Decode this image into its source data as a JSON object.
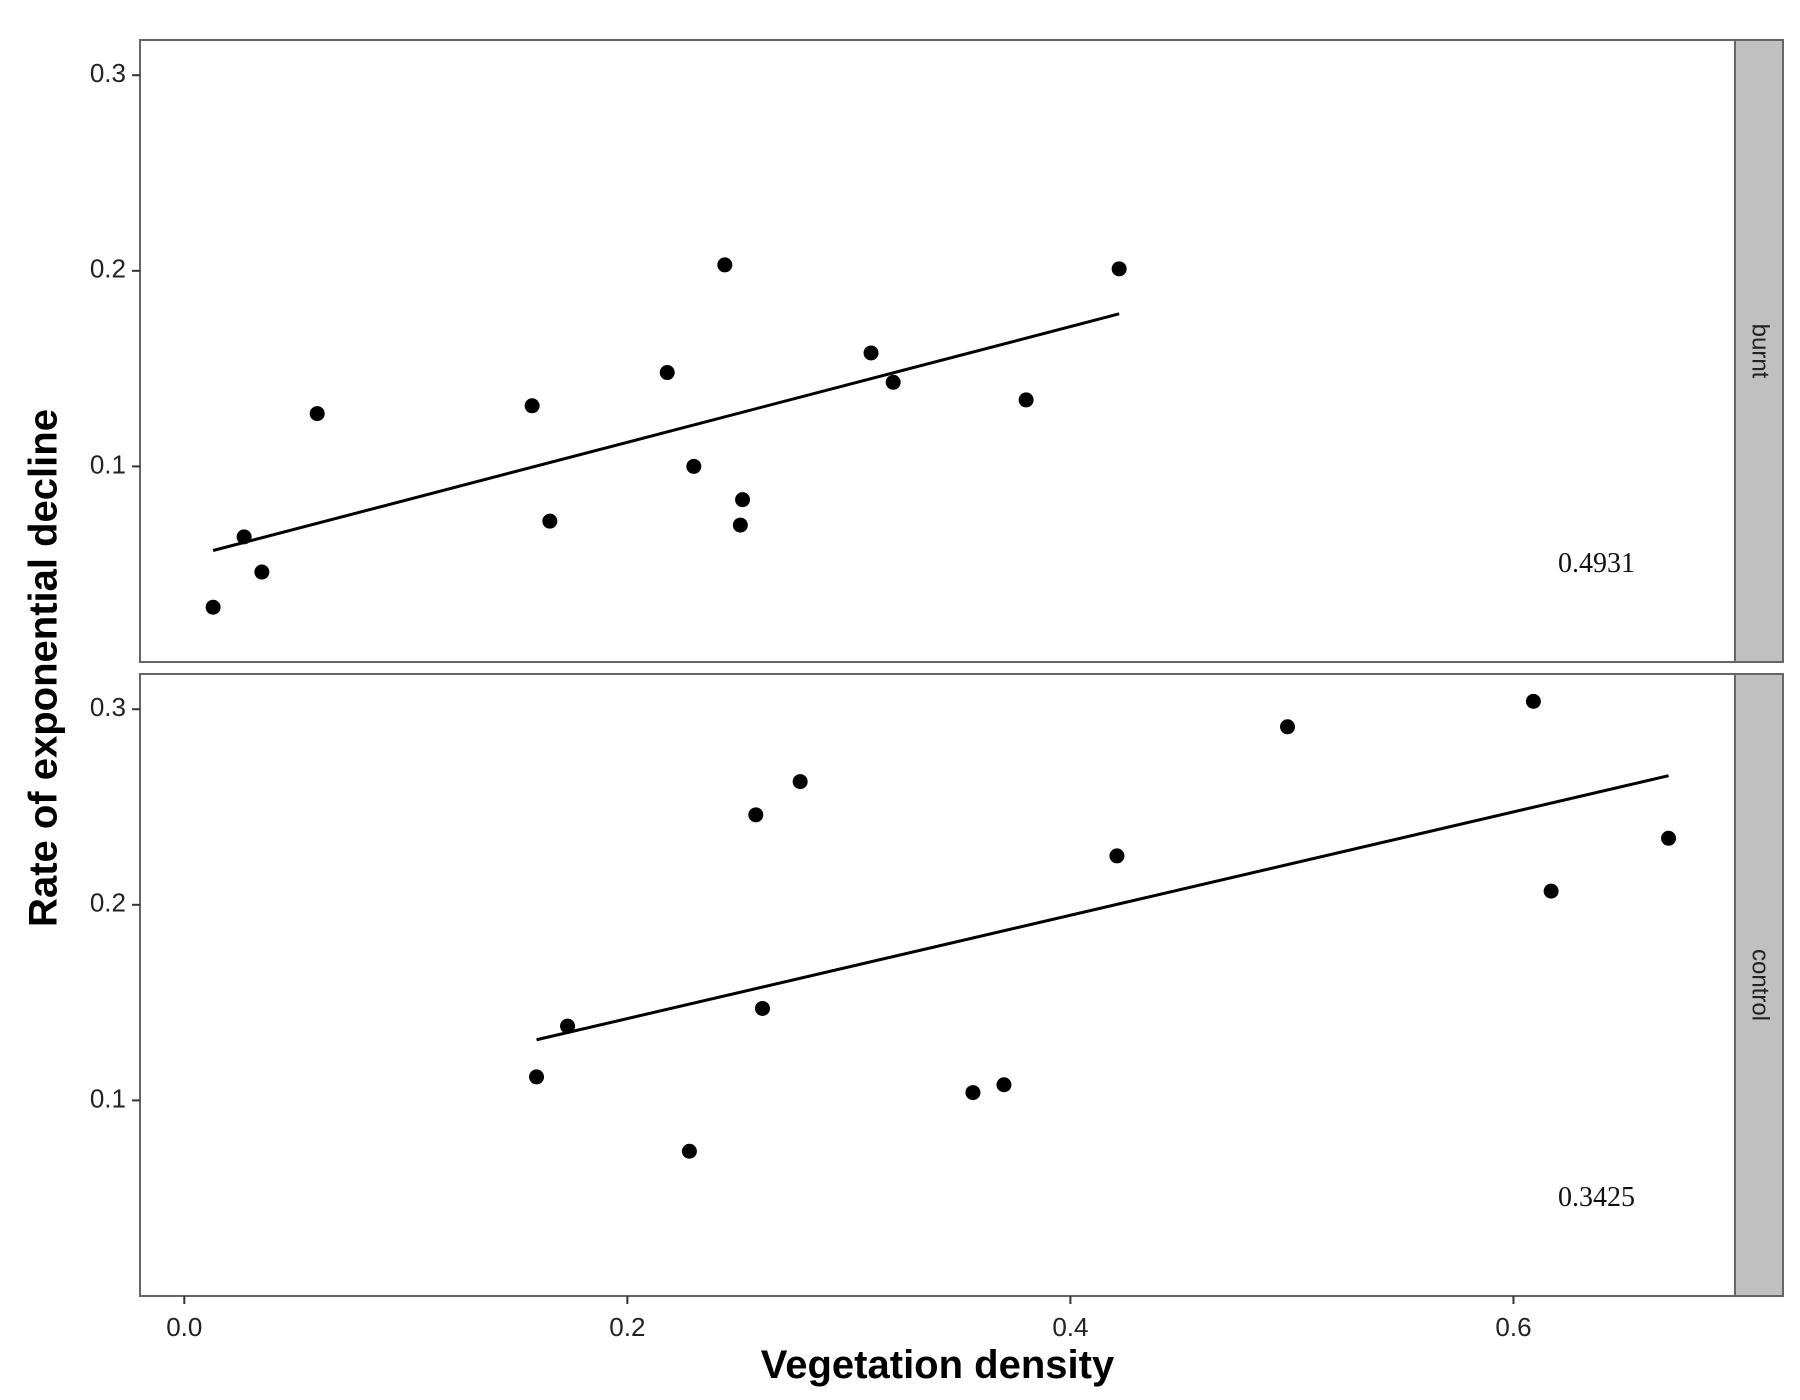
{
  "chart_data": {
    "type": "scatter",
    "xlabel": "Vegetation density",
    "ylabel": "Rate of exponential decline",
    "xlim": [
      -0.02,
      0.7
    ],
    "ylim": [
      0.0,
      0.318
    ],
    "x_ticks": [
      0.0,
      0.2,
      0.4,
      0.6
    ],
    "x_tick_labels": [
      "0.0",
      "0.2",
      "0.4",
      "0.6"
    ],
    "y_ticks": [
      0.1,
      0.2,
      0.3
    ],
    "y_tick_labels": [
      "0.1",
      "0.2",
      "0.3"
    ],
    "grid": false,
    "facets": [
      {
        "strip": "burnt",
        "annotation": "0.4931",
        "points": [
          {
            "x": 0.013,
            "y": 0.028
          },
          {
            "x": 0.027,
            "y": 0.064
          },
          {
            "x": 0.035,
            "y": 0.046
          },
          {
            "x": 0.06,
            "y": 0.127
          },
          {
            "x": 0.157,
            "y": 0.131
          },
          {
            "x": 0.165,
            "y": 0.072
          },
          {
            "x": 0.218,
            "y": 0.148
          },
          {
            "x": 0.23,
            "y": 0.1
          },
          {
            "x": 0.244,
            "y": 0.203
          },
          {
            "x": 0.251,
            "y": 0.07
          },
          {
            "x": 0.252,
            "y": 0.083
          },
          {
            "x": 0.31,
            "y": 0.158
          },
          {
            "x": 0.32,
            "y": 0.143
          },
          {
            "x": 0.38,
            "y": 0.134
          },
          {
            "x": 0.422,
            "y": 0.201
          }
        ],
        "fit_line": [
          {
            "x": 0.013,
            "y": 0.057
          },
          {
            "x": 0.422,
            "y": 0.178
          }
        ]
      },
      {
        "strip": "control",
        "annotation": "0.3425",
        "points": [
          {
            "x": 0.159,
            "y": 0.112
          },
          {
            "x": 0.173,
            "y": 0.138
          },
          {
            "x": 0.228,
            "y": 0.074
          },
          {
            "x": 0.258,
            "y": 0.246
          },
          {
            "x": 0.261,
            "y": 0.147
          },
          {
            "x": 0.278,
            "y": 0.263
          },
          {
            "x": 0.356,
            "y": 0.104
          },
          {
            "x": 0.37,
            "y": 0.108
          },
          {
            "x": 0.421,
            "y": 0.225
          },
          {
            "x": 0.498,
            "y": 0.291
          },
          {
            "x": 0.609,
            "y": 0.304
          },
          {
            "x": 0.617,
            "y": 0.207
          },
          {
            "x": 0.67,
            "y": 0.234
          }
        ],
        "fit_line": [
          {
            "x": 0.159,
            "y": 0.131
          },
          {
            "x": 0.67,
            "y": 0.266
          }
        ]
      }
    ]
  }
}
